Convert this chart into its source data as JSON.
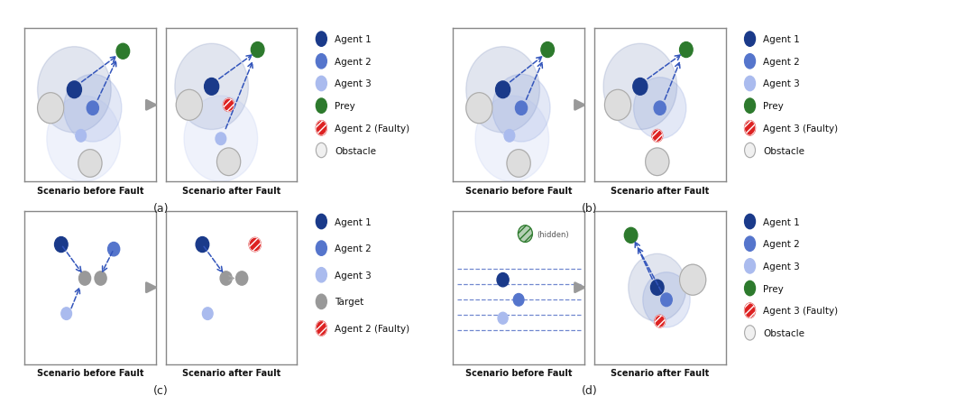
{
  "bg_color": "#ffffff",
  "panel_bg": "#ffffff",
  "agent1_color": "#1a3a8a",
  "agent2_color": "#5575cc",
  "agent3_color": "#aabbee",
  "prey_color": "#2d7a2d",
  "target_color": "#999999",
  "faulty_color": "#dd2222",
  "obstacle_color": "#dddddd",
  "dashed_blue": "#3355bb",
  "dashed_gray": "#aaaaaa",
  "legend_a": [
    "Agent 1",
    "Agent 2",
    "Agent 3",
    "Prey",
    "Agent 2 (Faulty)",
    "Obstacle"
  ],
  "legend_b": [
    "Agent 1",
    "Agent 2",
    "Agent 3",
    "Prey",
    "Agent 3 (Faulty)",
    "Obstacle"
  ],
  "legend_c": [
    "Agent 1",
    "Agent 2",
    "Agent 3",
    "Target",
    "Agent 2 (Faulty)"
  ],
  "legend_d": [
    "Agent 1",
    "Agent 2",
    "Agent 3",
    "Prey",
    "Agent 3 (Faulty)",
    "Obstacle"
  ]
}
